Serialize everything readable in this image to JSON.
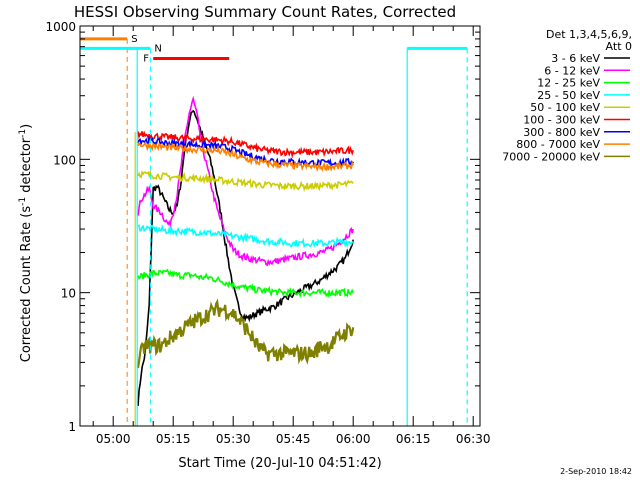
{
  "chart_data": {
    "type": "line",
    "title": "HESSI Observing Summary Count Rates, Corrected",
    "xlabel": "Start Time (20-Jul-10 04:51:42)",
    "ylabel_main": "Corrected Count Rate (s",
    "ylabel_sup1": "-1",
    "ylabel_mid": " detector",
    "ylabel_sup2": "-1",
    "ylabel_end": ")",
    "yscale": "log",
    "ylim": [
      1,
      1000
    ],
    "xlim_minutes": [
      291.7,
      391.7
    ],
    "x_ticks": [
      {
        "m": 300,
        "label": "05:00"
      },
      {
        "m": 315,
        "label": "05:15"
      },
      {
        "m": 330,
        "label": "05:30"
      },
      {
        "m": 345,
        "label": "05:45"
      },
      {
        "m": 360,
        "label": "06:00"
      },
      {
        "m": 375,
        "label": "06:15"
      },
      {
        "m": 390,
        "label": "06:30"
      }
    ],
    "y_ticks": [
      {
        "v": 1,
        "label": "1"
      },
      {
        "v": 10,
        "label": "10"
      },
      {
        "v": 100,
        "label": "100"
      },
      {
        "v": 1000,
        "label": "1000"
      }
    ],
    "legend": {
      "header1": "Det 1,3,4,5,6,9,",
      "header2": "Att 0",
      "placement": "right"
    },
    "series": [
      {
        "name": "3 - 6 keV",
        "color": "#000000",
        "points": [
          [
            306.2,
            1.5
          ],
          [
            307,
            2.5
          ],
          [
            308,
            3.5
          ],
          [
            309,
            8
          ],
          [
            310,
            60
          ],
          [
            311,
            62
          ],
          [
            312,
            55
          ],
          [
            313,
            48
          ],
          [
            314,
            42
          ],
          [
            315,
            40
          ],
          [
            316,
            45
          ],
          [
            317,
            70
          ],
          [
            318,
            130
          ],
          [
            319,
            190
          ],
          [
            320,
            240
          ],
          [
            321,
            200
          ],
          [
            322,
            160
          ],
          [
            323,
            130
          ],
          [
            324,
            105
          ],
          [
            325,
            80
          ],
          [
            326,
            55
          ],
          [
            327,
            38
          ],
          [
            328,
            24
          ],
          [
            329,
            16
          ],
          [
            330,
            11
          ],
          [
            331,
            8.5
          ],
          [
            332,
            7
          ],
          [
            333,
            6.5
          ],
          [
            334,
            6.5
          ],
          [
            335,
            6.8
          ],
          [
            336,
            7
          ],
          [
            337,
            7.2
          ],
          [
            338,
            7.5
          ],
          [
            340,
            7.8
          ],
          [
            342,
            8.5
          ],
          [
            344,
            9.3
          ],
          [
            346,
            10
          ],
          [
            348,
            10.8
          ],
          [
            350,
            11.5
          ],
          [
            352,
            12.5
          ],
          [
            354,
            14
          ],
          [
            356,
            15.5
          ],
          [
            358,
            18
          ],
          [
            360,
            25
          ]
        ]
      },
      {
        "name": "6 - 12 keV",
        "color": "#ff00ff",
        "points": [
          [
            306.2,
            40
          ],
          [
            307,
            50
          ],
          [
            308,
            55
          ],
          [
            309,
            60
          ],
          [
            310,
            45
          ],
          [
            311,
            42
          ],
          [
            312,
            40
          ],
          [
            313,
            35
          ],
          [
            314,
            32
          ],
          [
            315,
            40
          ],
          [
            316,
            55
          ],
          [
            317,
            90
          ],
          [
            318,
            150
          ],
          [
            319,
            220
          ],
          [
            320,
            280
          ],
          [
            321,
            210
          ],
          [
            322,
            140
          ],
          [
            323,
            100
          ],
          [
            324,
            75
          ],
          [
            325,
            55
          ],
          [
            326,
            42
          ],
          [
            327,
            34
          ],
          [
            328,
            28
          ],
          [
            329,
            24
          ],
          [
            330,
            21
          ],
          [
            332,
            19
          ],
          [
            334,
            18
          ],
          [
            336,
            17.5
          ],
          [
            338,
            17
          ],
          [
            340,
            17
          ],
          [
            342,
            17.5
          ],
          [
            344,
            18
          ],
          [
            346,
            18.5
          ],
          [
            348,
            19
          ],
          [
            350,
            19.5
          ],
          [
            352,
            20
          ],
          [
            354,
            21
          ],
          [
            356,
            23
          ],
          [
            358,
            26
          ],
          [
            360,
            30
          ]
        ]
      },
      {
        "name": "12 - 25 keV",
        "color": "#00ff00",
        "points": [
          [
            306.2,
            13
          ],
          [
            308,
            13.5
          ],
          [
            310,
            14
          ],
          [
            312,
            14
          ],
          [
            314,
            14
          ],
          [
            316,
            13.5
          ],
          [
            318,
            13.5
          ],
          [
            320,
            13.5
          ],
          [
            322,
            13
          ],
          [
            324,
            13
          ],
          [
            326,
            12.5
          ],
          [
            328,
            12
          ],
          [
            330,
            11.5
          ],
          [
            332,
            11
          ],
          [
            334,
            10.8
          ],
          [
            336,
            10.5
          ],
          [
            338,
            10.3
          ],
          [
            340,
            10.2
          ],
          [
            342,
            10
          ],
          [
            344,
            10
          ],
          [
            346,
            10
          ],
          [
            348,
            10
          ],
          [
            350,
            10
          ],
          [
            352,
            10
          ],
          [
            354,
            10
          ],
          [
            356,
            10
          ],
          [
            358,
            10
          ],
          [
            360,
            10
          ]
        ]
      },
      {
        "name": "25 - 50 keV",
        "color": "#00ffff",
        "points": [
          [
            306.2,
            31
          ],
          [
            308,
            30.5
          ],
          [
            310,
            30
          ],
          [
            312,
            29.5
          ],
          [
            314,
            29
          ],
          [
            316,
            29
          ],
          [
            318,
            29
          ],
          [
            320,
            28.5
          ],
          [
            322,
            28.5
          ],
          [
            324,
            28
          ],
          [
            326,
            27.5
          ],
          [
            328,
            27
          ],
          [
            330,
            26.5
          ],
          [
            332,
            26
          ],
          [
            334,
            25.5
          ],
          [
            336,
            25
          ],
          [
            338,
            24.5
          ],
          [
            340,
            24
          ],
          [
            342,
            24
          ],
          [
            344,
            23.5
          ],
          [
            346,
            23.5
          ],
          [
            348,
            23.5
          ],
          [
            350,
            23.5
          ],
          [
            352,
            23.5
          ],
          [
            354,
            23.5
          ],
          [
            356,
            24
          ],
          [
            358,
            24
          ],
          [
            360,
            24
          ]
        ]
      },
      {
        "name": "50 - 100 keV",
        "color": "#cccc00",
        "points": [
          [
            306.2,
            78
          ],
          [
            308,
            77
          ],
          [
            310,
            76
          ],
          [
            312,
            75
          ],
          [
            314,
            74
          ],
          [
            316,
            73
          ],
          [
            318,
            73
          ],
          [
            320,
            72
          ],
          [
            322,
            72
          ],
          [
            324,
            71
          ],
          [
            326,
            70
          ],
          [
            328,
            69
          ],
          [
            330,
            68
          ],
          [
            332,
            67
          ],
          [
            334,
            66
          ],
          [
            336,
            65
          ],
          [
            338,
            64
          ],
          [
            340,
            64
          ],
          [
            342,
            63
          ],
          [
            344,
            63
          ],
          [
            346,
            63
          ],
          [
            348,
            63
          ],
          [
            350,
            63
          ],
          [
            352,
            63
          ],
          [
            354,
            64
          ],
          [
            356,
            64
          ],
          [
            358,
            65
          ],
          [
            360,
            66
          ]
        ]
      },
      {
        "name": "100 - 300 keV",
        "color": "#ff0000",
        "points": [
          [
            306.2,
            155
          ],
          [
            308,
            153
          ],
          [
            310,
            150
          ],
          [
            312,
            148
          ],
          [
            314,
            146
          ],
          [
            316,
            145
          ],
          [
            318,
            144
          ],
          [
            320,
            143
          ],
          [
            322,
            142
          ],
          [
            324,
            141
          ],
          [
            326,
            140
          ],
          [
            328,
            138
          ],
          [
            330,
            135
          ],
          [
            332,
            130
          ],
          [
            334,
            125
          ],
          [
            336,
            120
          ],
          [
            338,
            117
          ],
          [
            340,
            115
          ],
          [
            342,
            114
          ],
          [
            344,
            113
          ],
          [
            346,
            113
          ],
          [
            348,
            113
          ],
          [
            350,
            113
          ],
          [
            352,
            113
          ],
          [
            354,
            114
          ],
          [
            356,
            115
          ],
          [
            358,
            116
          ],
          [
            360,
            117
          ]
        ]
      },
      {
        "name": "300 - 800 keV",
        "color": "#0000ff",
        "points": [
          [
            306.2,
            140
          ],
          [
            308,
            138
          ],
          [
            310,
            136
          ],
          [
            312,
            134
          ],
          [
            314,
            132
          ],
          [
            316,
            131
          ],
          [
            318,
            130
          ],
          [
            320,
            129
          ],
          [
            322,
            128
          ],
          [
            324,
            127
          ],
          [
            326,
            126
          ],
          [
            328,
            123
          ],
          [
            330,
            118
          ],
          [
            332,
            112
          ],
          [
            334,
            107
          ],
          [
            336,
            103
          ],
          [
            338,
            100
          ],
          [
            340,
            98
          ],
          [
            342,
            97
          ],
          [
            344,
            96
          ],
          [
            346,
            95
          ],
          [
            348,
            95
          ],
          [
            350,
            94
          ],
          [
            352,
            94
          ],
          [
            354,
            94
          ],
          [
            356,
            94
          ],
          [
            358,
            95
          ],
          [
            360,
            96
          ]
        ]
      },
      {
        "name": "800 - 7000 keV",
        "color": "#ff8000",
        "points": [
          [
            306.2,
            130
          ],
          [
            308,
            128
          ],
          [
            310,
            126
          ],
          [
            312,
            124
          ],
          [
            314,
            122
          ],
          [
            316,
            121
          ],
          [
            318,
            120
          ],
          [
            320,
            119
          ],
          [
            322,
            118
          ],
          [
            324,
            117
          ],
          [
            326,
            116
          ],
          [
            328,
            113
          ],
          [
            330,
            108
          ],
          [
            332,
            103
          ],
          [
            334,
            99
          ],
          [
            336,
            96
          ],
          [
            338,
            94
          ],
          [
            340,
            92
          ],
          [
            342,
            91
          ],
          [
            344,
            90
          ],
          [
            346,
            89
          ],
          [
            348,
            89
          ],
          [
            350,
            88
          ],
          [
            352,
            88
          ],
          [
            354,
            88
          ],
          [
            356,
            88
          ],
          [
            358,
            89
          ],
          [
            360,
            90
          ]
        ]
      },
      {
        "name": "7000 - 20000 keV",
        "color": "#808000",
        "points": [
          [
            306.2,
            3
          ],
          [
            307,
            3.5
          ],
          [
            308,
            4
          ],
          [
            310,
            4
          ],
          [
            312,
            4
          ],
          [
            314,
            4.5
          ],
          [
            316,
            5
          ],
          [
            318,
            5.5
          ],
          [
            320,
            6
          ],
          [
            322,
            6.5
          ],
          [
            324,
            7
          ],
          [
            326,
            7.5
          ],
          [
            328,
            7.5
          ],
          [
            330,
            7
          ],
          [
            332,
            6
          ],
          [
            334,
            5
          ],
          [
            336,
            4
          ],
          [
            338,
            3.5
          ],
          [
            340,
            3.5
          ],
          [
            342,
            3.5
          ],
          [
            344,
            3.5
          ],
          [
            346,
            3.5
          ],
          [
            348,
            3.5
          ],
          [
            350,
            3.5
          ],
          [
            352,
            4
          ],
          [
            354,
            4
          ],
          [
            356,
            4.5
          ],
          [
            358,
            5
          ],
          [
            360,
            5.5
          ]
        ]
      }
    ],
    "flags": [
      {
        "label": "S",
        "color": "#ff8000",
        "y": 800,
        "x": [
          291.7,
          303.5
        ],
        "dashed_x": 303.5
      },
      {
        "label": "N",
        "color": "#00ffff",
        "y": 680,
        "x": [
          291.7,
          309.3
        ],
        "dashed_x": 309.3
      },
      {
        "label": "F",
        "color": "#ff0000",
        "y": 570,
        "x": [
          310,
          329
        ]
      }
    ],
    "solid_vlines": [
      {
        "x": 306,
        "color": "#00ffff",
        "y": [
          1,
          680
        ]
      },
      {
        "x": 305.5,
        "color": "#cccc00",
        "y": [
          1,
          160
        ]
      },
      {
        "x": 373.5,
        "color": "#00ffff",
        "y": [
          1,
          680
        ]
      }
    ],
    "dashed_vlines": [
      {
        "x": 388.5,
        "color": "#00ffff",
        "y": [
          1,
          680
        ]
      }
    ],
    "right_bar": {
      "color": "#00ffff",
      "y": 680,
      "x": [
        373.5,
        388.5
      ]
    }
  },
  "timestamp": "2-Sep-2010 18:42"
}
